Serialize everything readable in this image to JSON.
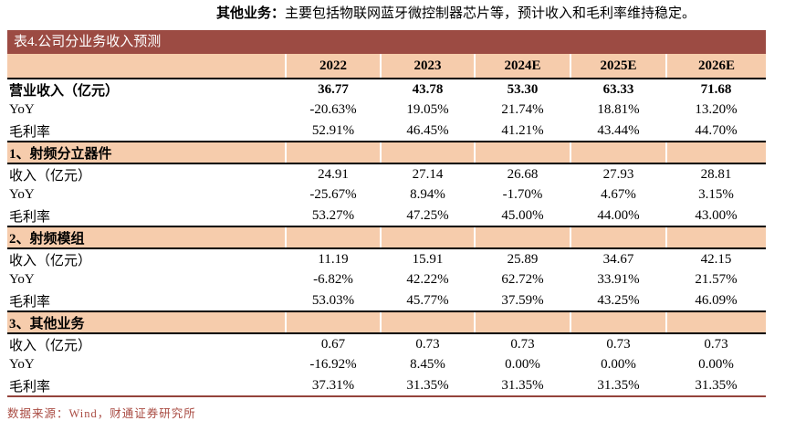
{
  "annotation": {
    "lead": "其他业务：",
    "text": "主要包括物联网蓝牙微控制器芯片等，预计收入和毛利率维持稳定。"
  },
  "table": {
    "title": "表4.公司分业务收入预测",
    "year_columns": [
      "2022",
      "2023",
      "2024E",
      "2025E",
      "2026E"
    ],
    "groups": [
      {
        "header": "",
        "rows": [
          {
            "label": "营业收入（亿元）",
            "bold": true,
            "values": [
              "36.77",
              "43.78",
              "53.30",
              "63.33",
              "71.68"
            ]
          },
          {
            "label": "YoY",
            "bold": false,
            "values": [
              "-20.63%",
              "19.05%",
              "21.74%",
              "18.81%",
              "13.20%"
            ]
          },
          {
            "label": "毛利率",
            "bold": false,
            "values": [
              "52.91%",
              "46.45%",
              "41.21%",
              "43.44%",
              "44.70%"
            ]
          }
        ]
      },
      {
        "header": "1、射频分立器件",
        "rows": [
          {
            "label": "收入（亿元）",
            "bold": false,
            "values": [
              "24.91",
              "27.14",
              "26.68",
              "27.93",
              "28.81"
            ]
          },
          {
            "label": "YoY",
            "bold": false,
            "values": [
              "-25.67%",
              "8.94%",
              "-1.70%",
              "4.67%",
              "3.15%"
            ]
          },
          {
            "label": "毛利率",
            "bold": false,
            "values": [
              "53.27%",
              "47.25%",
              "45.00%",
              "44.00%",
              "43.00%"
            ]
          }
        ]
      },
      {
        "header": "2、射频模组",
        "rows": [
          {
            "label": "收入（亿元）",
            "bold": false,
            "values": [
              "11.19",
              "15.91",
              "25.89",
              "34.67",
              "42.15"
            ]
          },
          {
            "label": "YoY",
            "bold": false,
            "values": [
              "-6.82%",
              "42.22%",
              "62.72%",
              "33.91%",
              "21.57%"
            ]
          },
          {
            "label": "毛利率",
            "bold": false,
            "values": [
              "53.03%",
              "45.77%",
              "37.59%",
              "43.25%",
              "46.09%"
            ]
          }
        ]
      },
      {
        "header": "3、其他业务",
        "rows": [
          {
            "label": "收入（亿元）",
            "bold": false,
            "values": [
              "0.67",
              "0.73",
              "0.73",
              "0.73",
              "0.73"
            ]
          },
          {
            "label": "YoY",
            "bold": false,
            "values": [
              "-16.92%",
              "8.45%",
              "0.00%",
              "0.00%",
              "0.00%"
            ]
          },
          {
            "label": "毛利率",
            "bold": false,
            "values": [
              "37.31%",
              "31.35%",
              "31.35%",
              "31.35%",
              "31.35%"
            ]
          }
        ]
      }
    ]
  },
  "source": "数据来源：Wind，财通证券研究所",
  "colors": {
    "title_bar": "#9c4b43",
    "section_row": "#f6ccac",
    "source_text": "#a94b42",
    "bottom_rule": "#94433b"
  }
}
